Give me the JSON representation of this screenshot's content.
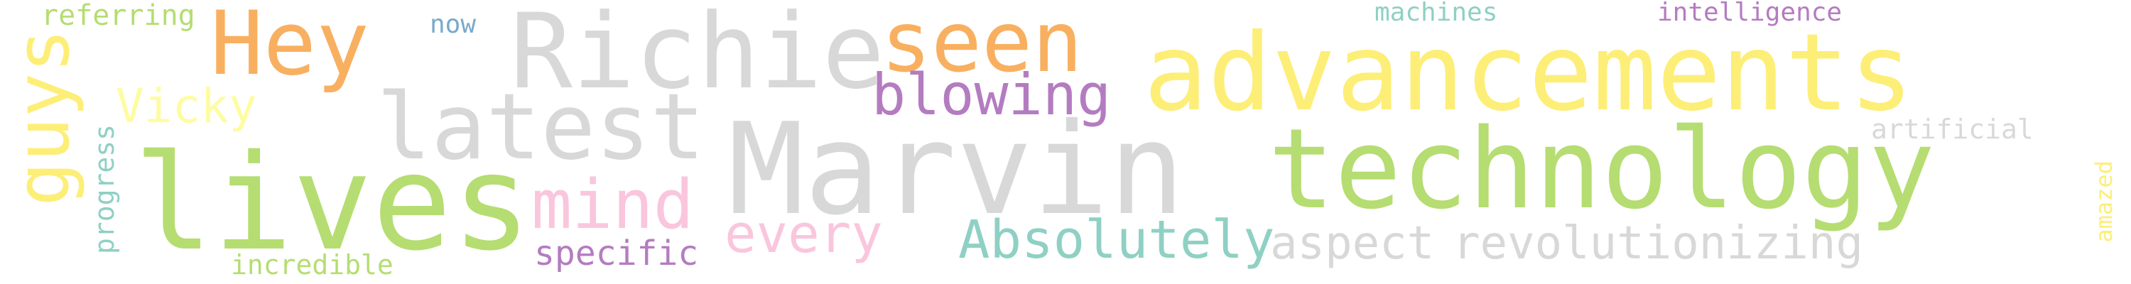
{
  "words": {
    "marvin": {
      "text": "Marvin",
      "color": "#d8d8d8"
    },
    "technology": {
      "text": "technology",
      "color": "#b5dd72"
    },
    "advancements": {
      "text": "advancements",
      "color": "#fdee77"
    },
    "lives": {
      "text": "lives",
      "color": "#b5dd72"
    },
    "richie": {
      "text": "Richie",
      "color": "#d8d8d8"
    },
    "seen": {
      "text": "seen",
      "color": "#f8b060"
    },
    "hey": {
      "text": "Hey",
      "color": "#f8b060"
    },
    "latest": {
      "text": "latest",
      "color": "#d8d8d8"
    },
    "guys": {
      "text": "guys",
      "color": "#fdee77"
    },
    "blowing": {
      "text": "blowing",
      "color": "#b47cc0"
    },
    "mind": {
      "text": "mind",
      "color": "#f9c6dd"
    },
    "vicky": {
      "text": "Vicky",
      "color": "#fefca2"
    },
    "absolutely": {
      "text": "Absolutely",
      "color": "#8fd0c4"
    },
    "aspect": {
      "text": "aspect",
      "color": "#d8d8d8"
    },
    "revolutionizing": {
      "text": "revolutionizing",
      "color": "#d8d8d8"
    },
    "every": {
      "text": "every",
      "color": "#f9c6dd"
    },
    "specific": {
      "text": "specific",
      "color": "#b47cc0"
    },
    "referring": {
      "text": "referring",
      "color": "#b5dd72"
    },
    "now": {
      "text": "now",
      "color": "#79a9cc"
    },
    "machines": {
      "text": "machines",
      "color": "#8fd0c4"
    },
    "intelligence": {
      "text": "intelligence",
      "color": "#b47cc0"
    },
    "artificial": {
      "text": "artificial",
      "color": "#d8d8d8"
    },
    "progress": {
      "text": "progress",
      "color": "#8fd0c4"
    },
    "incredible": {
      "text": "incredible",
      "color": "#b5dd72"
    },
    "amazed": {
      "text": "amazed",
      "color": "#fdee77"
    }
  }
}
